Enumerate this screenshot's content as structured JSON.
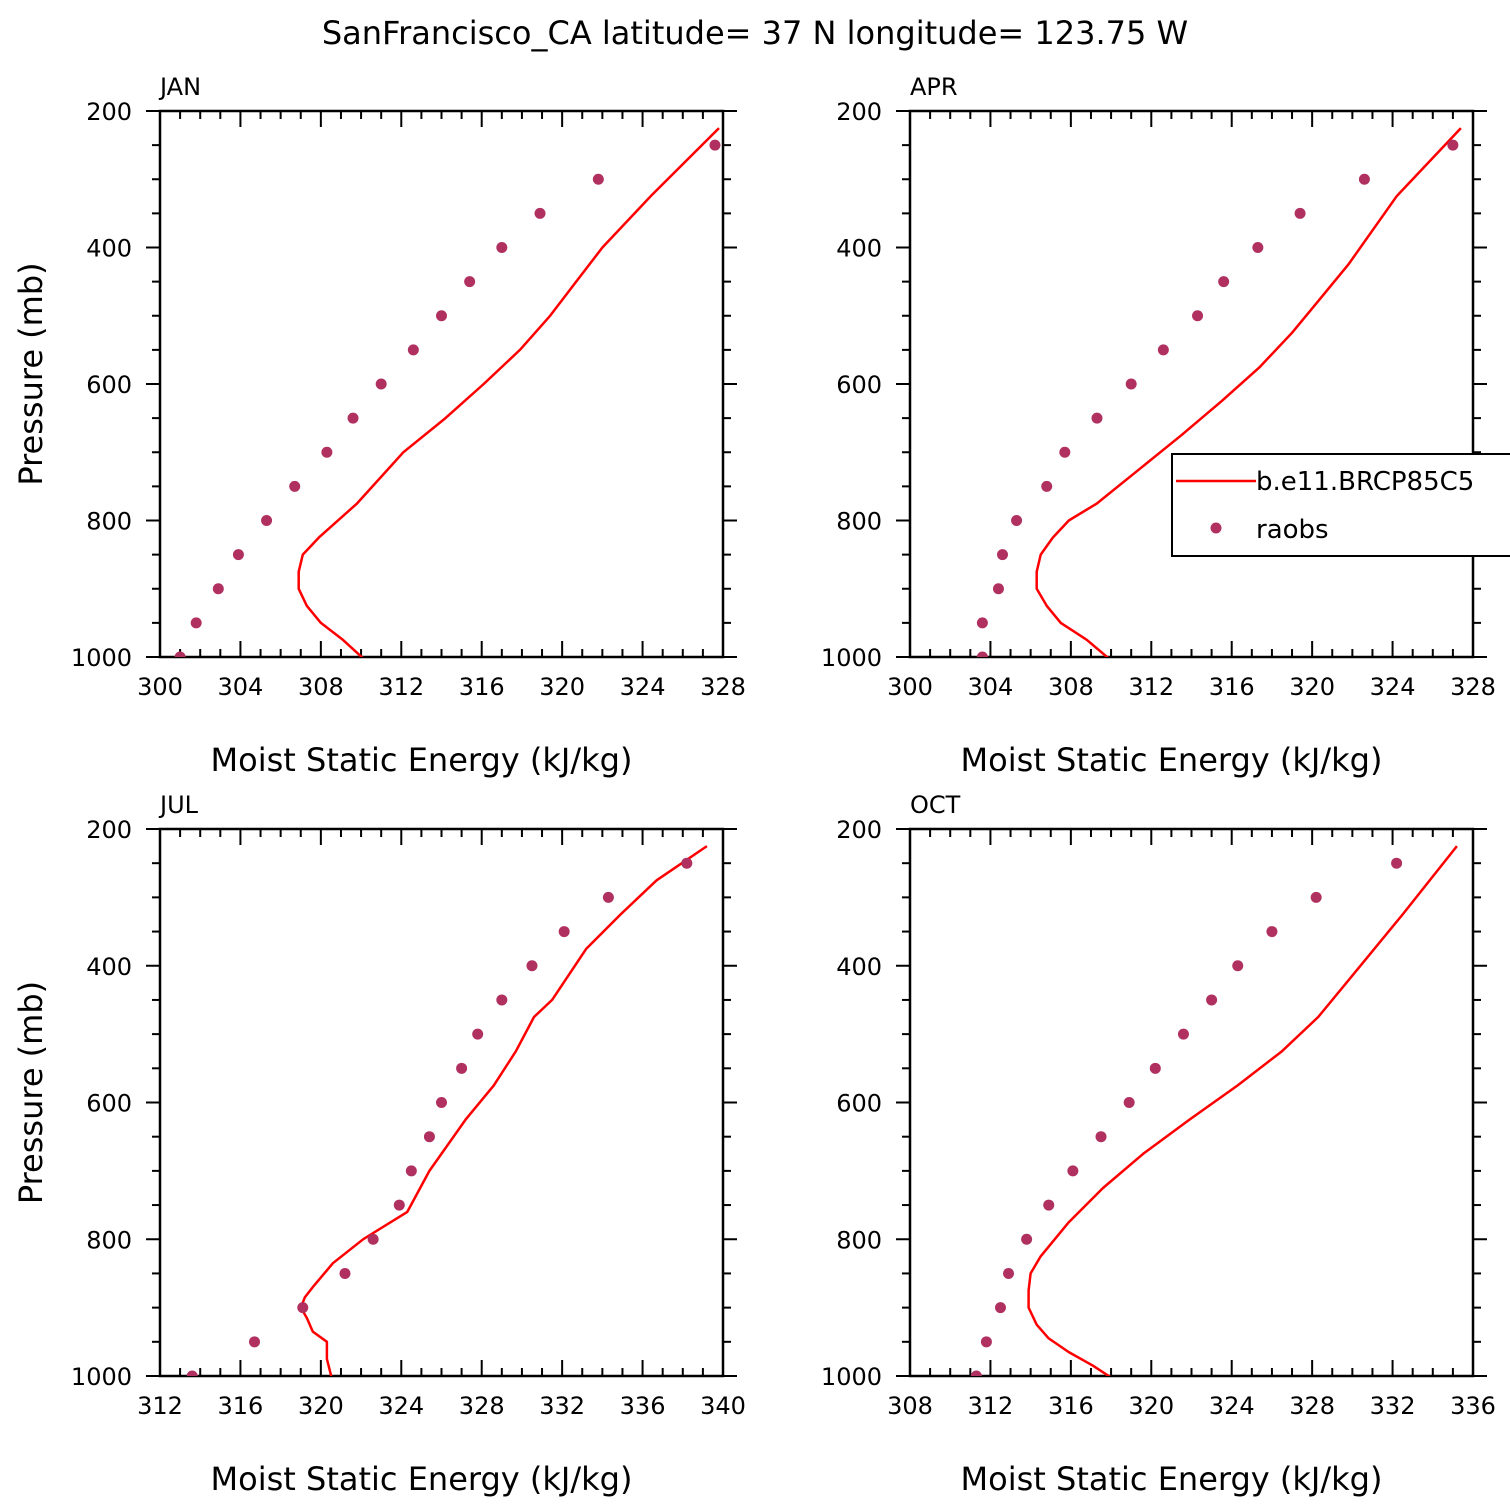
{
  "title": "SanFrancisco_CA  latitude= 37 N longitude= 123.75 W",
  "colors": {
    "model": "#ff0000",
    "obs": "#b03060",
    "frame": "#000000"
  },
  "legend": {
    "placement": "right, inside APR panel",
    "entries": [
      {
        "label": "b.e11.BRCP85C5",
        "kind": "line",
        "color": "#ff0000"
      },
      {
        "label": "raobs",
        "kind": "marker",
        "color": "#b03060"
      }
    ]
  },
  "chart_data": [
    {
      "type": "line",
      "title": "JAN",
      "xlabel": "Moist Static Energy (kJ/kg)",
      "ylabel": "Pressure (mb)",
      "xlim": [
        300,
        328
      ],
      "ylim": [
        1000,
        200
      ],
      "xticks": [
        "300",
        "304",
        "308",
        "312",
        "316",
        "320",
        "324",
        "328"
      ],
      "yticks": [
        "200",
        "400",
        "600",
        "800",
        "1000"
      ],
      "series": [
        {
          "name": "b.e11.BRCP85C5",
          "style": "line",
          "x": [
            310.4,
            309.1,
            308.0,
            307.3,
            306.9,
            306.9,
            307.1,
            307.9,
            309.8,
            312.1,
            314.2,
            316.1,
            317.9,
            319.4,
            320.7,
            322.0,
            324.4,
            327.8
          ],
          "y": [
            1010,
            975,
            950,
            925,
            900,
            875,
            850,
            825,
            775,
            700,
            650,
            600,
            550,
            500,
            450,
            400,
            325,
            225
          ]
        },
        {
          "name": "raobs",
          "style": "marker",
          "x": [
            301.0,
            301.8,
            302.9,
            303.9,
            305.3,
            306.7,
            308.3,
            309.6,
            311.0,
            312.6,
            314.0,
            315.4,
            317.0,
            318.9,
            321.8,
            327.6
          ],
          "y": [
            1000,
            950,
            900,
            850,
            800,
            750,
            700,
            650,
            600,
            550,
            500,
            450,
            400,
            350,
            300,
            250
          ]
        }
      ]
    },
    {
      "type": "line",
      "title": "APR",
      "xlabel": "Moist Static Energy (kJ/kg)",
      "ylabel": "",
      "xlim": [
        300,
        328
      ],
      "ylim": [
        1000,
        200
      ],
      "xticks": [
        "300",
        "304",
        "308",
        "312",
        "316",
        "320",
        "324",
        "328"
      ],
      "yticks": [
        "200",
        "400",
        "600",
        "800",
        "1000"
      ],
      "series": [
        {
          "name": "b.e11.BRCP85C5",
          "style": "line",
          "x": [
            310.2,
            308.8,
            307.5,
            306.8,
            306.3,
            306.3,
            306.5,
            307.1,
            307.9,
            309.3,
            311.4,
            313.5,
            315.5,
            317.4,
            319.0,
            320.4,
            321.8,
            324.2,
            327.4
          ],
          "y": [
            1010,
            975,
            950,
            925,
            900,
            875,
            850,
            825,
            800,
            775,
            725,
            675,
            625,
            575,
            525,
            475,
            425,
            325,
            225
          ]
        },
        {
          "name": "raobs",
          "style": "marker",
          "x": [
            303.6,
            303.6,
            304.4,
            304.6,
            305.3,
            306.8,
            307.7,
            309.3,
            311.0,
            312.6,
            314.3,
            315.6,
            317.3,
            319.4,
            322.6,
            327.0
          ],
          "y": [
            1000,
            950,
            900,
            850,
            800,
            750,
            700,
            650,
            600,
            550,
            500,
            450,
            400,
            350,
            300,
            250
          ]
        }
      ]
    },
    {
      "type": "line",
      "title": "JUL",
      "xlabel": "Moist Static Energy (kJ/kg)",
      "ylabel": "Pressure (mb)",
      "xlim": [
        312,
        340
      ],
      "ylim": [
        1000,
        200
      ],
      "xticks": [
        "312",
        "316",
        "320",
        "324",
        "328",
        "332",
        "336",
        "340"
      ],
      "yticks": [
        "200",
        "400",
        "600",
        "800",
        "1000"
      ],
      "series": [
        {
          "name": "b.e11.BRCP85C5",
          "style": "line",
          "x": [
            320.6,
            320.3,
            320.3,
            320.3,
            319.6,
            319.3,
            319.0,
            319.2,
            319.6,
            320.6,
            322.1,
            324.3,
            325.4,
            327.2,
            328.6,
            329.7,
            330.6,
            331.5,
            333.2,
            334.9,
            336.7,
            339.2
          ],
          "y": [
            1010,
            975,
            950,
            950,
            935,
            915,
            900,
            885,
            870,
            835,
            800,
            760,
            700,
            625,
            575,
            525,
            475,
            450,
            375,
            325,
            275,
            225
          ]
        },
        {
          "name": "raobs",
          "style": "marker",
          "x": [
            313.6,
            316.7,
            319.1,
            321.2,
            322.6,
            323.9,
            324.5,
            325.4,
            326.0,
            327.0,
            327.8,
            329.0,
            330.5,
            332.1,
            334.3,
            338.2
          ],
          "y": [
            1000,
            950,
            900,
            850,
            800,
            750,
            700,
            650,
            600,
            550,
            500,
            450,
            400,
            350,
            300,
            250
          ]
        }
      ]
    },
    {
      "type": "line",
      "title": "OCT",
      "xlabel": "Moist Static Energy (kJ/kg)",
      "ylabel": "",
      "xlim": [
        308,
        336
      ],
      "ylim": [
        1000,
        200
      ],
      "xticks": [
        "308",
        "312",
        "316",
        "320",
        "324",
        "328",
        "332",
        "336"
      ],
      "yticks": [
        "200",
        "400",
        "600",
        "800",
        "1000"
      ],
      "series": [
        {
          "name": "b.e11.BRCP85C5",
          "style": "line",
          "x": [
            318.4,
            317.1,
            315.9,
            314.9,
            314.3,
            313.9,
            313.9,
            314.0,
            314.5,
            315.9,
            317.6,
            319.6,
            321.9,
            324.3,
            326.5,
            328.3,
            330.4,
            332.5,
            335.2
          ],
          "y": [
            1010,
            985,
            965,
            945,
            925,
            900,
            875,
            850,
            825,
            775,
            725,
            675,
            625,
            575,
            525,
            475,
            400,
            325,
            225
          ]
        },
        {
          "name": "raobs",
          "style": "marker",
          "x": [
            311.3,
            311.8,
            312.5,
            312.9,
            313.8,
            314.9,
            316.1,
            317.5,
            318.9,
            320.2,
            321.6,
            323.0,
            324.3,
            326.0,
            328.2,
            332.2
          ],
          "y": [
            1000,
            950,
            900,
            850,
            800,
            750,
            700,
            650,
            600,
            550,
            500,
            450,
            400,
            350,
            300,
            250
          ]
        }
      ]
    }
  ]
}
